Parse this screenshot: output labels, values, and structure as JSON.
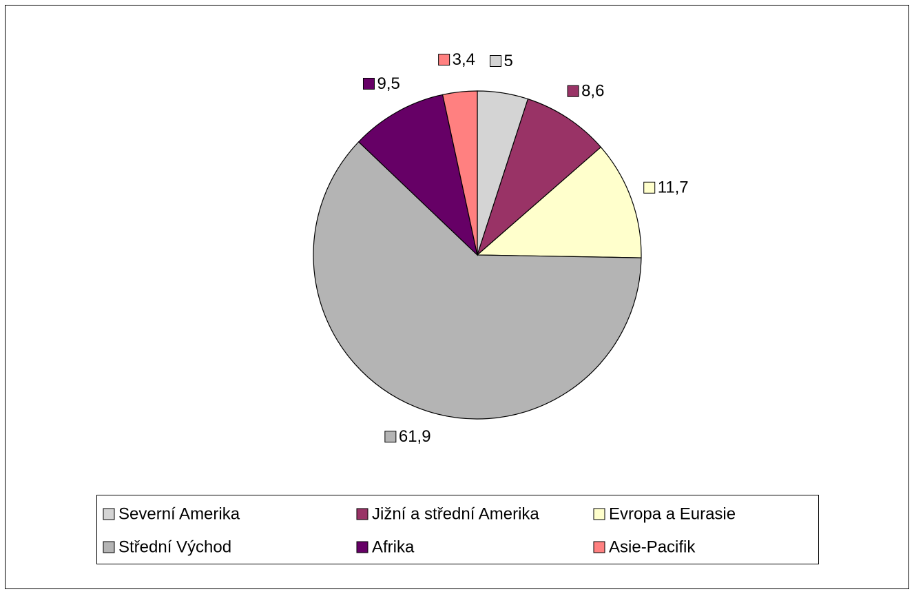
{
  "chart_data": {
    "type": "pie",
    "categories": [
      "Severní Amerika",
      "Jižní a střední Amerika",
      "Evropa a Eurasie",
      "Střední Východ",
      "Afrika",
      "Asie-Pacifik"
    ],
    "values": [
      5,
      8.6,
      11.7,
      61.9,
      9.5,
      3.4
    ],
    "value_labels": [
      "5",
      "8,6",
      "11,7",
      "61,9",
      "9,5",
      "3,4"
    ],
    "colors": [
      "#d4d4d4",
      "#993366",
      "#ffffcc",
      "#b4b4b4",
      "#660066",
      "#ff8080"
    ],
    "legend": "bottom"
  }
}
